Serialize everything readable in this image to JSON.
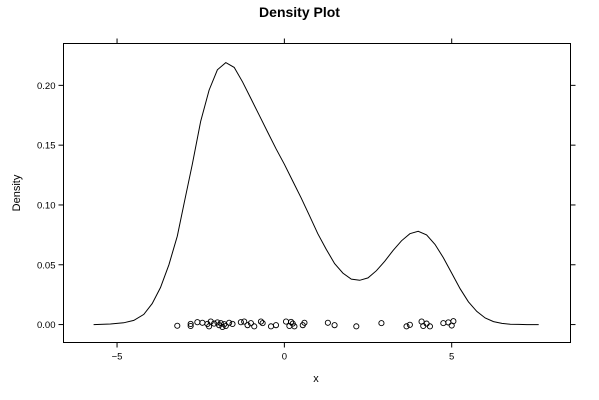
{
  "chart_data": {
    "type": "line",
    "title": "Density Plot",
    "xlabel": "x",
    "ylabel": "Density",
    "xlim": [
      -6.6,
      8.55
    ],
    "ylim": [
      -0.015,
      0.235
    ],
    "x_ticks": [
      -5,
      0,
      5
    ],
    "x_tick_labels": [
      "−5",
      "0",
      "5"
    ],
    "y_ticks": [
      0,
      0.05,
      0.1,
      0.15,
      0.2
    ],
    "y_tick_labels": [
      "0.00",
      "0.05",
      "0.10",
      "0.15",
      "0.20"
    ],
    "grid": false,
    "legend": "none",
    "series": [
      {
        "x": [
          -5.7,
          -5.2,
          -4.8,
          -4.5,
          -4.2,
          -3.95,
          -3.7,
          -3.45,
          -3.2,
          -3.0,
          -2.75,
          -2.5,
          -2.25,
          -2.0,
          -1.75,
          -1.5,
          -1.25,
          -1.0,
          -0.75,
          -0.5,
          -0.25,
          0.0,
          0.25,
          0.5,
          0.75,
          1.0,
          1.25,
          1.5,
          1.75,
          2.0,
          2.25,
          2.5,
          2.75,
          3.0,
          3.25,
          3.5,
          3.75,
          4.0,
          4.25,
          4.5,
          4.75,
          5.0,
          5.25,
          5.5,
          5.75,
          6.0,
          6.25,
          6.5,
          6.75,
          7.0,
          7.25,
          7.6
        ],
        "y": [
          0.0,
          0.0005,
          0.0015,
          0.0035,
          0.0085,
          0.0175,
          0.031,
          0.05,
          0.074,
          0.101,
          0.134,
          0.17,
          0.196,
          0.213,
          0.219,
          0.215,
          0.203,
          0.189,
          0.175,
          0.161,
          0.147,
          0.134,
          0.12,
          0.106,
          0.091,
          0.076,
          0.063,
          0.051,
          0.043,
          0.038,
          0.037,
          0.039,
          0.045,
          0.053,
          0.062,
          0.07,
          0.076,
          0.078,
          0.075,
          0.067,
          0.056,
          0.043,
          0.03,
          0.019,
          0.011,
          0.0055,
          0.0025,
          0.001,
          0.0003,
          0.0001,
          0.0,
          0.0
        ]
      }
    ],
    "rug_points": [
      {
        "x": -3.2,
        "y": -0.001
      },
      {
        "x": -2.8,
        "y": -0.0012
      },
      {
        "x": -2.8,
        "y": 0.0005
      },
      {
        "x": -2.6,
        "y": 0.002
      },
      {
        "x": -2.45,
        "y": 0.0015
      },
      {
        "x": -2.3,
        "y": 0.0005
      },
      {
        "x": -2.25,
        "y": -0.0015
      },
      {
        "x": -2.2,
        "y": 0.0025
      },
      {
        "x": -2.1,
        "y": 0.0008
      },
      {
        "x": -2.0,
        "y": 0.0018
      },
      {
        "x": -1.95,
        "y": -0.0005
      },
      {
        "x": -1.9,
        "y": 0.0012
      },
      {
        "x": -1.85,
        "y": -0.002
      },
      {
        "x": -1.8,
        "y": 0.0003
      },
      {
        "x": -1.75,
        "y": -0.0012
      },
      {
        "x": -1.65,
        "y": 0.0015
      },
      {
        "x": -1.55,
        "y": 0.0005
      },
      {
        "x": -1.3,
        "y": 0.002
      },
      {
        "x": -1.2,
        "y": 0.0025
      },
      {
        "x": -1.1,
        "y": -0.0005
      },
      {
        "x": -1.0,
        "y": 0.0012
      },
      {
        "x": -0.9,
        "y": -0.0015
      },
      {
        "x": -0.7,
        "y": 0.0025
      },
      {
        "x": -0.65,
        "y": 0.0012
      },
      {
        "x": -0.4,
        "y": -0.0015
      },
      {
        "x": -0.25,
        "y": -0.0005
      },
      {
        "x": 0.05,
        "y": 0.0025
      },
      {
        "x": 0.15,
        "y": -0.0012
      },
      {
        "x": 0.2,
        "y": 0.0022
      },
      {
        "x": 0.25,
        "y": 0.0008
      },
      {
        "x": 0.3,
        "y": -0.0015
      },
      {
        "x": 0.55,
        "y": -0.0005
      },
      {
        "x": 0.6,
        "y": 0.0015
      },
      {
        "x": 1.3,
        "y": 0.0015
      },
      {
        "x": 1.5,
        "y": -0.0005
      },
      {
        "x": 2.15,
        "y": -0.0015
      },
      {
        "x": 2.9,
        "y": 0.0012
      },
      {
        "x": 3.65,
        "y": -0.0015
      },
      {
        "x": 3.75,
        "y": -0.0002
      },
      {
        "x": 4.1,
        "y": 0.0025
      },
      {
        "x": 4.15,
        "y": -0.0012
      },
      {
        "x": 4.25,
        "y": 0.0008
      },
      {
        "x": 4.35,
        "y": -0.0015
      },
      {
        "x": 4.75,
        "y": 0.0012
      },
      {
        "x": 4.9,
        "y": 0.0018
      },
      {
        "x": 5.0,
        "y": -0.0008
      },
      {
        "x": 5.05,
        "y": 0.0028
      }
    ]
  }
}
